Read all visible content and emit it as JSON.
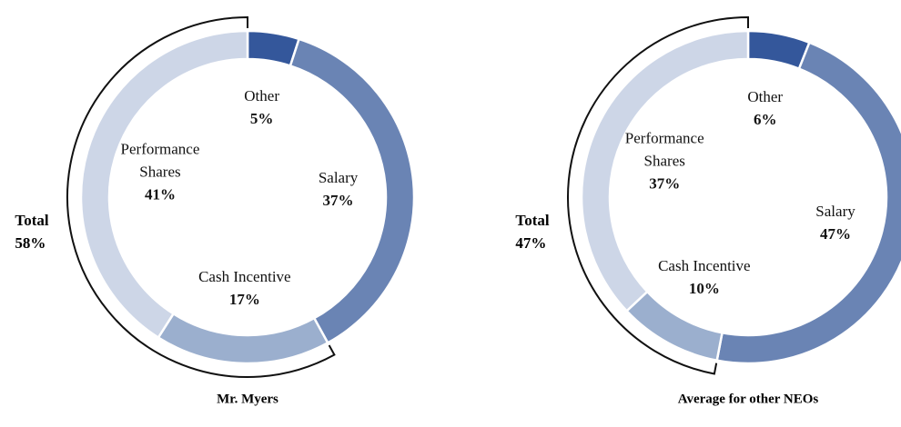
{
  "chart_data": [
    {
      "type": "donut",
      "title": "Mr. Myers",
      "categories": [
        "Other",
        "Salary",
        "Cash Incentive",
        "Performance Shares"
      ],
      "values": [
        5,
        37,
        17,
        41
      ],
      "value_labels": [
        "5%",
        "37%",
        "17%",
        "41%"
      ],
      "colors": [
        "#34579b",
        "#6a84b4",
        "#9bafce",
        "#cdd6e7"
      ],
      "annotation": {
        "text": "Total",
        "value": 58,
        "value_label": "58%"
      }
    },
    {
      "type": "donut",
      "title": "Average for other NEOs",
      "categories": [
        "Other",
        "Salary",
        "Cash Incentive",
        "Performance Shares"
      ],
      "values": [
        6,
        47,
        10,
        37
      ],
      "value_labels": [
        "6%",
        "47%",
        "10%",
        "37%"
      ],
      "colors": [
        "#34579b",
        "#6a84b4",
        "#9bafce",
        "#cdd6e7"
      ],
      "annotation": {
        "text": "Total",
        "value": 47,
        "value_label": "47%"
      }
    }
  ]
}
